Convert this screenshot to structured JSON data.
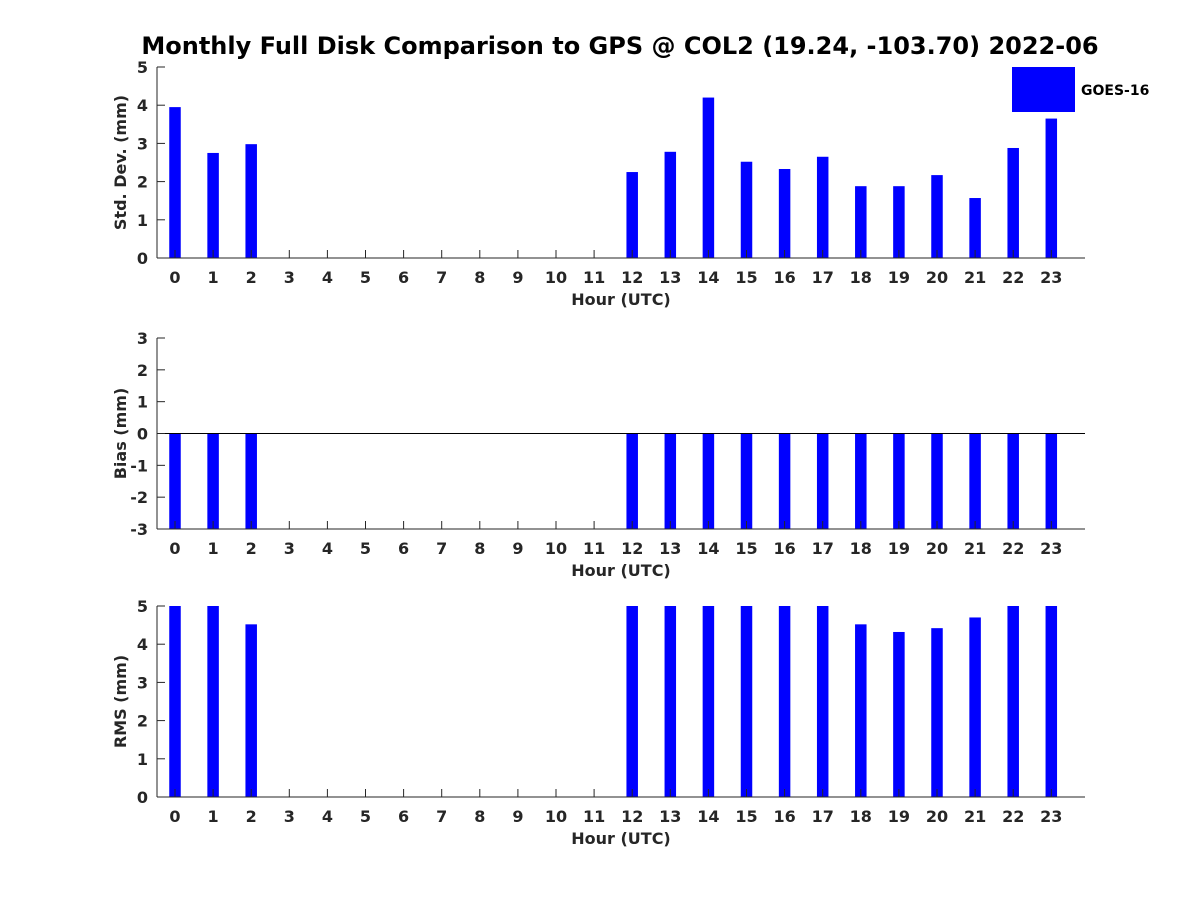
{
  "figure": {
    "title": "Monthly Full Disk Comparison to GPS @ COL2 (19.24, -103.70) 2022-06"
  },
  "legend": {
    "label": "GOES-16",
    "color": "#0000ff",
    "placement": "top-right"
  },
  "chart_data": [
    {
      "type": "bar",
      "ylabel": "Std. Dev. (mm)",
      "xlabel": "Hour (UTC)",
      "categories": [
        "0",
        "1",
        "2",
        "3",
        "4",
        "5",
        "6",
        "7",
        "8",
        "9",
        "10",
        "11",
        "12",
        "13",
        "14",
        "15",
        "16",
        "17",
        "18",
        "19",
        "20",
        "21",
        "22",
        "23"
      ],
      "ylim": [
        0,
        5
      ],
      "yticks": [
        "0",
        "1",
        "2",
        "3",
        "4",
        "5"
      ],
      "series": [
        {
          "name": "GOES-16",
          "color": "#0000ff",
          "values": [
            3.95,
            2.75,
            2.98,
            null,
            null,
            null,
            null,
            null,
            null,
            null,
            null,
            null,
            2.25,
            2.78,
            4.2,
            2.52,
            2.33,
            2.65,
            1.88,
            1.88,
            2.17,
            1.57,
            2.88,
            3.65
          ]
        }
      ]
    },
    {
      "type": "bar",
      "ylabel": "Bias (mm)",
      "xlabel": "Hour (UTC)",
      "categories": [
        "0",
        "1",
        "2",
        "3",
        "4",
        "5",
        "6",
        "7",
        "8",
        "9",
        "10",
        "11",
        "12",
        "13",
        "14",
        "15",
        "16",
        "17",
        "18",
        "19",
        "20",
        "21",
        "22",
        "23"
      ],
      "ylim": [
        -3,
        3
      ],
      "yticks": [
        "-3",
        "-2",
        "-1",
        "0",
        "1",
        "2",
        "3"
      ],
      "zero_line": true,
      "series": [
        {
          "name": "GOES-16",
          "color": "#0000ff",
          "values": [
            -3.0,
            -3.0,
            -3.0,
            null,
            null,
            null,
            null,
            null,
            null,
            null,
            null,
            null,
            -3.0,
            -3.0,
            -3.0,
            -3.0,
            -3.0,
            -3.0,
            -3.0,
            -3.0,
            -3.0,
            -3.0,
            -3.0,
            -3.0
          ]
        }
      ]
    },
    {
      "type": "bar",
      "ylabel": "RMS (mm)",
      "xlabel": "Hour (UTC)",
      "categories": [
        "0",
        "1",
        "2",
        "3",
        "4",
        "5",
        "6",
        "7",
        "8",
        "9",
        "10",
        "11",
        "12",
        "13",
        "14",
        "15",
        "16",
        "17",
        "18",
        "19",
        "20",
        "21",
        "22",
        "23"
      ],
      "ylim": [
        0,
        5
      ],
      "yticks": [
        "0",
        "1",
        "2",
        "3",
        "4",
        "5"
      ],
      "series": [
        {
          "name": "GOES-16",
          "color": "#0000ff",
          "values": [
            5.0,
            5.0,
            4.52,
            null,
            null,
            null,
            null,
            null,
            null,
            null,
            null,
            null,
            5.0,
            5.0,
            5.0,
            5.0,
            5.0,
            5.0,
            4.52,
            4.32,
            4.42,
            4.7,
            5.0,
            5.0
          ]
        }
      ]
    }
  ]
}
